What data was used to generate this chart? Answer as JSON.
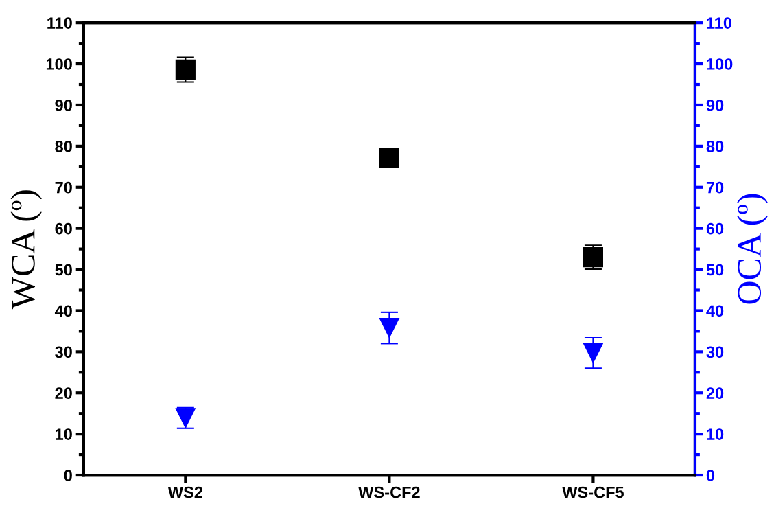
{
  "chart_data": {
    "type": "scatter",
    "categories": [
      "WS2",
      "WS-CF2",
      "WS-CF5"
    ],
    "series": [
      {
        "color": "#000000",
        "marker": "square",
        "values": [
          98.6,
          77.2,
          53.0
        ],
        "errors": [
          3.0,
          2.2,
          2.9
        ]
      },
      {
        "color": "#0000ff",
        "marker": "triangle",
        "axis": "y2",
        "values": [
          13.9,
          35.8,
          29.7
        ],
        "errors": [
          2.5,
          3.8,
          3.7
        ]
      }
    ],
    "ylabel": "WCA (º)",
    "y2label": "OCA (º)",
    "ylim": [
      0,
      110
    ],
    "yticks": [
      0,
      {
        "value": 5,
        "label": null
      },
      10,
      {
        "value": 15,
        "label": null
      },
      20,
      {
        "value": 25,
        "label": null
      },
      30,
      {
        "value": 35,
        "label": null
      },
      40,
      {
        "value": 45,
        "label": null
      },
      50,
      {
        "value": 55,
        "label": null
      },
      60,
      {
        "value": 65,
        "label": null
      },
      70,
      {
        "value": 75,
        "label": null
      },
      80,
      {
        "value": 85,
        "label": null
      },
      90,
      {
        "value": 95,
        "label": null
      },
      100,
      {
        "value": 105,
        "label": null
      },
      110
    ],
    "y2lim": [
      0,
      110
    ],
    "y2ticks": [
      0,
      {
        "value": 5,
        "label": null
      },
      10,
      {
        "value": 15,
        "label": null
      },
      20,
      {
        "value": 25,
        "label": null
      },
      30,
      {
        "value": 35,
        "label": null
      },
      40,
      {
        "value": 45,
        "label": null
      },
      50,
      {
        "value": 55,
        "label": null
      },
      60,
      {
        "value": 65,
        "label": null
      },
      70,
      {
        "value": 75,
        "label": null
      },
      80,
      {
        "value": 85,
        "label": null
      },
      90,
      {
        "value": 95,
        "label": null
      },
      100,
      {
        "value": 105,
        "label": null
      },
      110
    ],
    "grid": false
  }
}
